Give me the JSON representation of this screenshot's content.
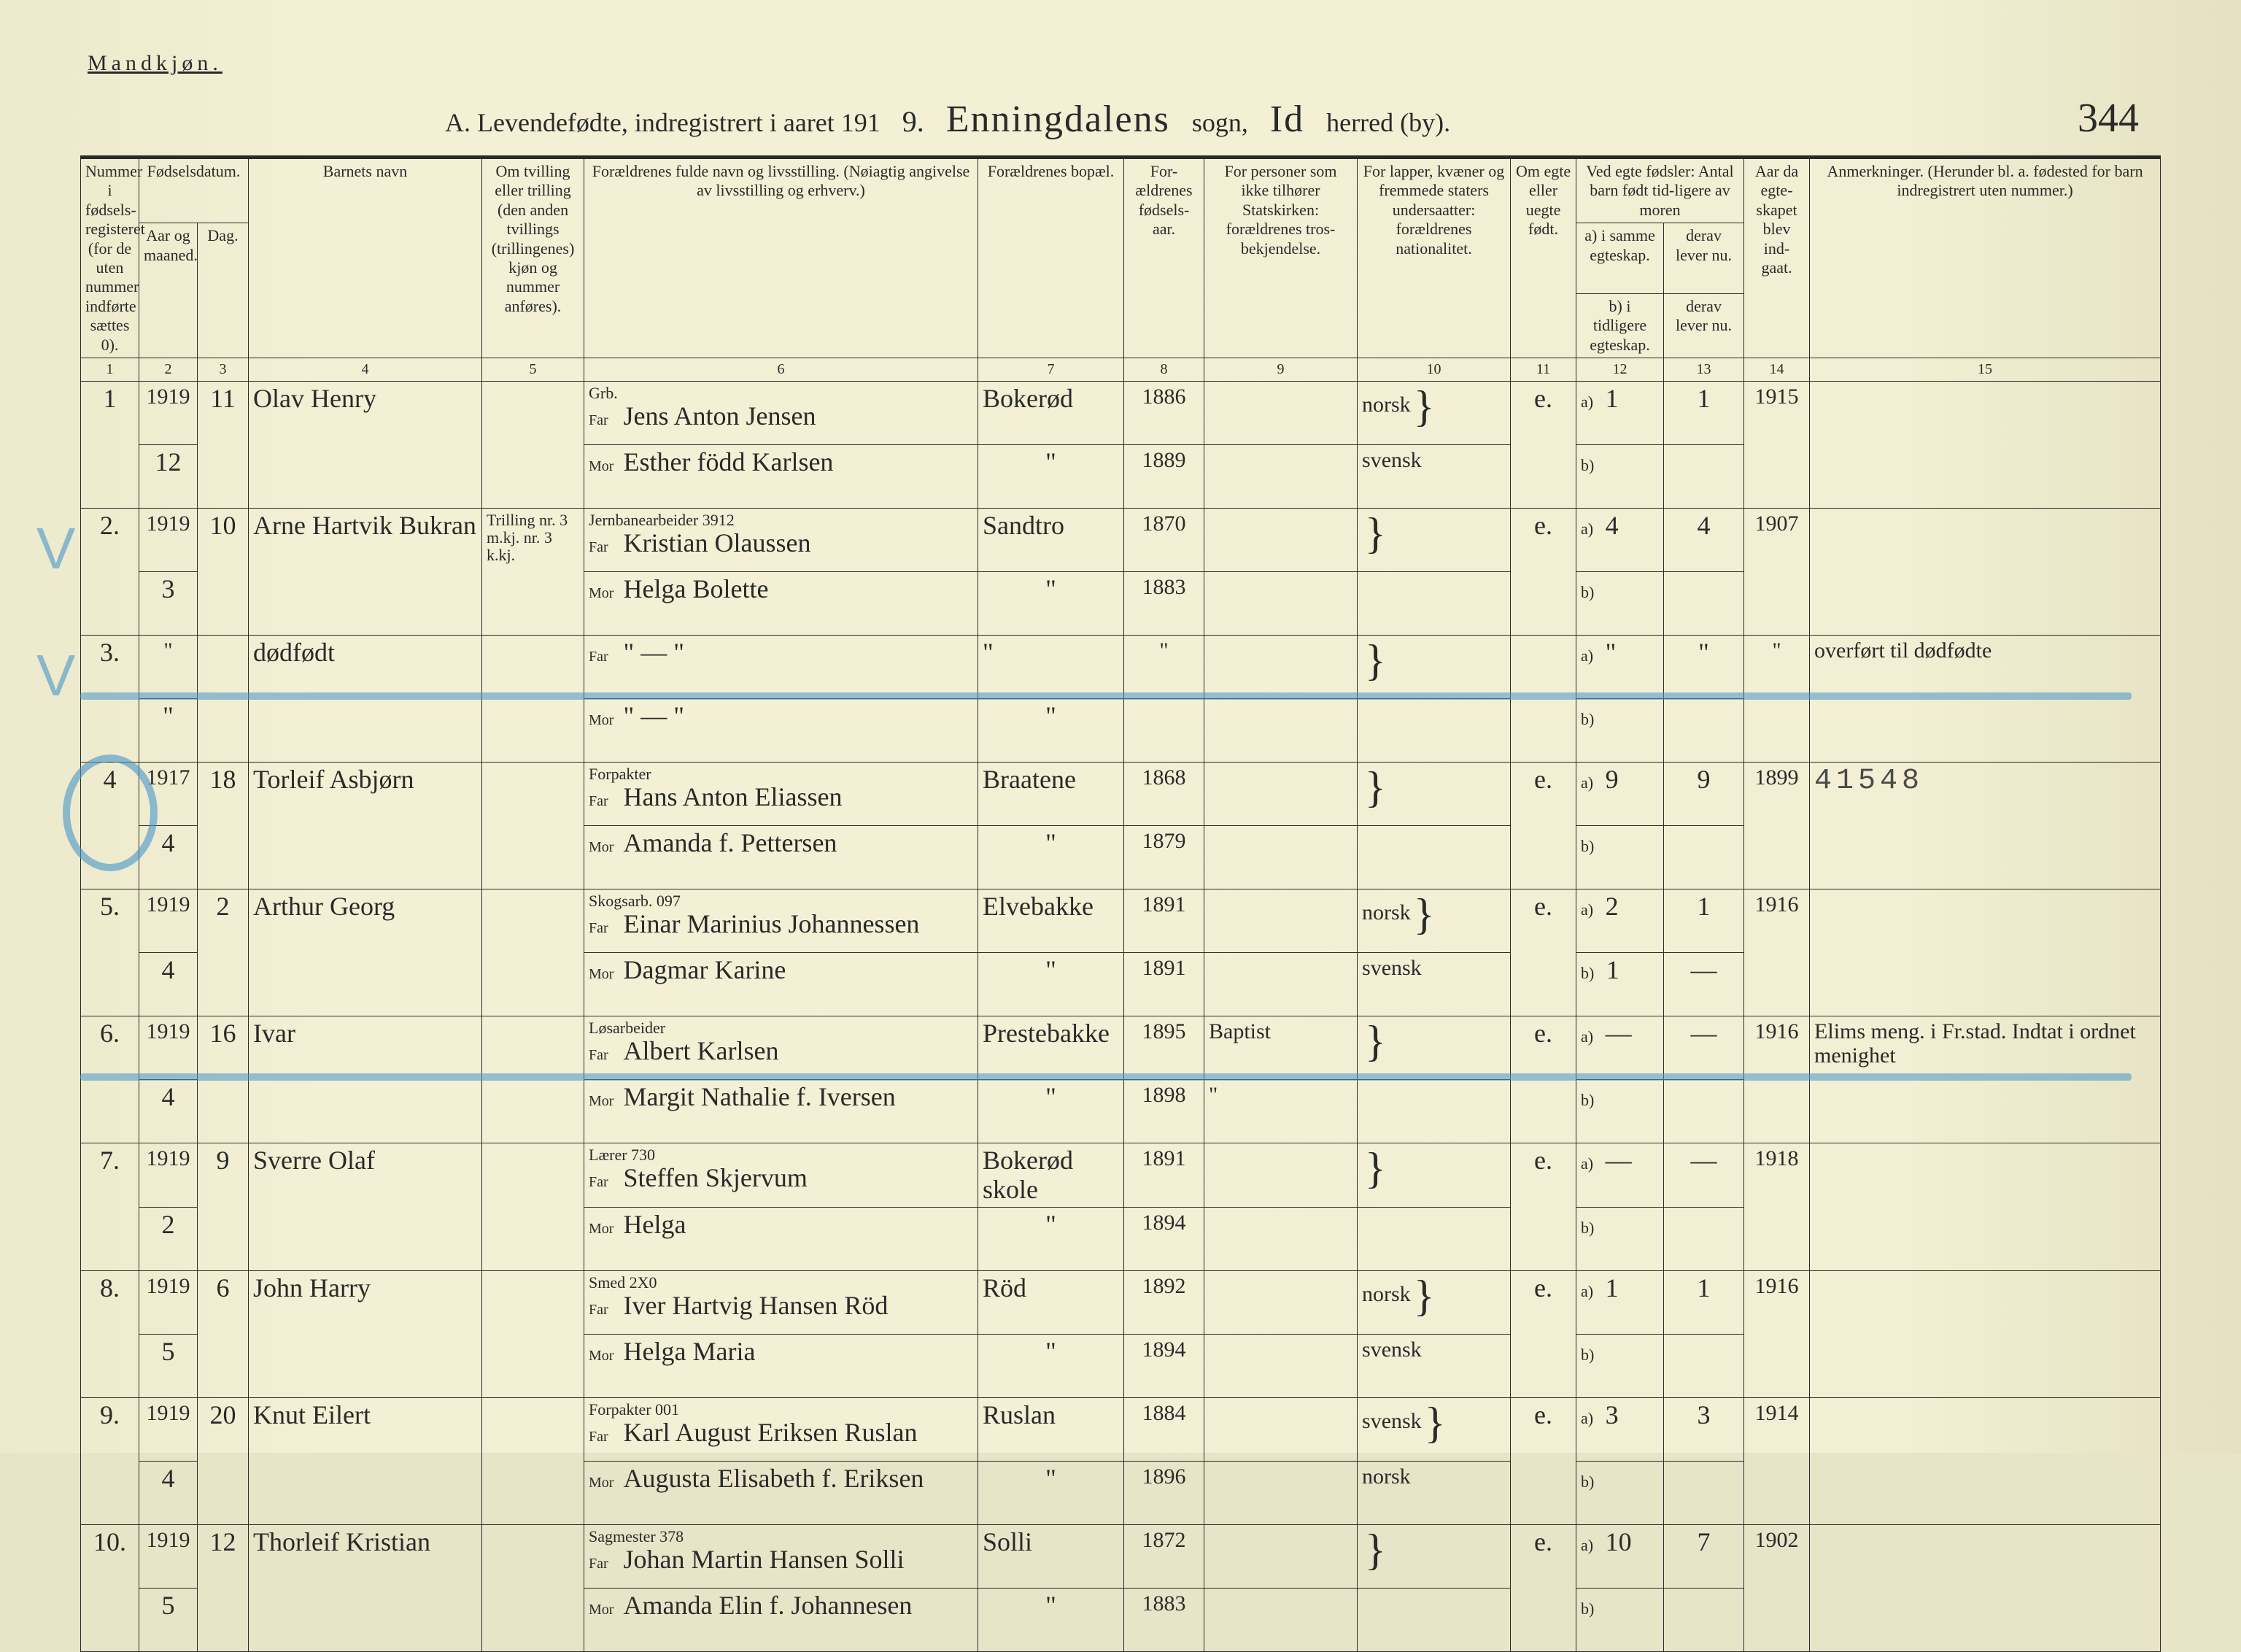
{
  "page": {
    "gender_heading": "Mandkjøn.",
    "title_prefix": "A. Levendefødte, indregistrert i aaret 191",
    "year_suffix": "9.",
    "sogn_script": "Enningdalens",
    "sogn_label": "sogn,",
    "herred_script": "Id",
    "herred_label": "herred (by).",
    "page_number": "344",
    "stamp": "41548"
  },
  "headers": {
    "c1": "Nummer i fødsels-registeret (for de uten nummer indførte sættes 0).",
    "c2": "Fødselsdatum.",
    "c2a": "Aar og maaned.",
    "c2b": "Dag.",
    "c4": "Barnets navn",
    "c5": "Om tvilling eller trilling (den anden tvillings (trillingenes) kjøn og nummer anføres).",
    "c6": "Forældrenes fulde navn og livsstilling. (Nøiagtig angivelse av livsstilling og erhverv.)",
    "c7": "Forældrenes bopæl.",
    "c8": "For-ældrenes fødsels-aar.",
    "c9": "For personer som ikke tilhører Statskirken: forældrenes tros-bekjendelse.",
    "c10": "For lapper, kvæner og fremmede staters undersaatter: forældrenes nationalitet.",
    "c11": "Om egte eller uegte født.",
    "c12_top": "Ved egte fødsler: Antal barn født tid-ligere av moren",
    "c12a": "a) i samme egteskap.",
    "c12b": "b) i tidligere egteskap.",
    "c13a": "derav lever nu.",
    "c13b": "derav lever nu.",
    "c14": "Aar da egte-skapet blev ind-gaat.",
    "c15": "Anmerkninger. (Herunder bl. a. fødested for barn indregistrert uten nummer.)",
    "far": "Far",
    "mor": "Mor"
  },
  "colnums": [
    "1",
    "2",
    "3",
    "4",
    "5",
    "6",
    "7",
    "8",
    "9",
    "10",
    "11",
    "12",
    "13",
    "14",
    "15"
  ],
  "entries": [
    {
      "num": "1",
      "yr": "1919",
      "mo": "12",
      "day": "11",
      "child": "Olav Henry",
      "twin": "",
      "occ": "Grb.",
      "far": "Jens Anton Jensen",
      "mor": "Esther född Karlsen",
      "bopael": "Bokerød",
      "faryr": "1886",
      "moryr": "1889",
      "rel": "",
      "nat_f": "norsk",
      "nat_m": "svensk",
      "egte": "e.",
      "a": "1",
      "c": "1",
      "b": "",
      "d": "",
      "marr": "1915",
      "anm": ""
    },
    {
      "num": "2.",
      "yr": "1919",
      "mo": "3",
      "day": "10",
      "child": "Arne Hartvik Bukran",
      "twin": "Trilling nr. 3 m.kj. nr. 3 k.kj.",
      "occ": "Jernbanearbeider 3912",
      "far": "Kristian Olaussen",
      "mor": "Helga Bolette",
      "bopael": "Sandtro",
      "faryr": "1870",
      "moryr": "1883",
      "rel": "",
      "nat_f": "",
      "nat_m": "",
      "egte": "e.",
      "a": "4",
      "c": "4",
      "b": "",
      "d": "",
      "marr": "1907",
      "anm": ""
    },
    {
      "num": "3.",
      "yr": "\"",
      "mo": "\"",
      "day": "",
      "child": "dødfødt",
      "twin": "",
      "occ": "",
      "far": "\"  —  \"",
      "mor": "\"  —  \"",
      "bopael": "\"",
      "faryr": "\"",
      "moryr": "",
      "rel": "",
      "nat_f": "",
      "nat_m": "",
      "egte": "",
      "a": "\"",
      "c": "\"",
      "b": "",
      "d": "",
      "marr": "\"",
      "anm": "overført til dødfødte"
    },
    {
      "num": "4",
      "yr": "1917",
      "mo": "4",
      "day": "18",
      "child": "Torleif Asbjørn",
      "twin": "",
      "occ": "Forpakter",
      "far": "Hans Anton Eliassen",
      "mor": "Amanda f. Pettersen",
      "bopael": "Braatene",
      "faryr": "1868",
      "moryr": "1879",
      "rel": "",
      "nat_f": "",
      "nat_m": "",
      "egte": "e.",
      "a": "9",
      "c": "9",
      "b": "",
      "d": "",
      "marr": "1899",
      "anm": ""
    },
    {
      "num": "5.",
      "yr": "1919",
      "mo": "4",
      "day": "2",
      "child": "Arthur Georg",
      "twin": "",
      "occ": "Skogsarb. 097",
      "far": "Einar Marinius Johannessen",
      "mor": "Dagmar Karine",
      "bopael": "Elvebakke",
      "faryr": "1891",
      "moryr": "1891",
      "rel": "",
      "nat_f": "norsk",
      "nat_m": "svensk",
      "egte": "e.",
      "a": "2",
      "c": "1",
      "b": "1",
      "d": "—",
      "marr": "1916",
      "anm": ""
    },
    {
      "num": "6.",
      "yr": "1919",
      "mo": "4",
      "day": "16",
      "child": "Ivar",
      "twin": "",
      "occ": "Løsarbeider",
      "far": "Albert Karlsen",
      "mor": "Margit Nathalie f. Iversen",
      "bopael": "Prestebakke",
      "faryr": "1895",
      "moryr": "1898",
      "rel": "Baptist",
      "nat_f": "",
      "nat_m": "",
      "egte": "e.",
      "a": "—",
      "c": "—",
      "b": "",
      "d": "",
      "marr": "1916",
      "anm": "Elims meng. i Fr.stad. Indtat i ordnet menighet"
    },
    {
      "num": "7.",
      "yr": "1919",
      "mo": "2",
      "day": "9",
      "child": "Sverre Olaf",
      "twin": "",
      "occ": "Lærer 730",
      "far": "Steffen Skjervum",
      "mor": "Helga",
      "bopael": "Bokerød skole",
      "faryr": "1891",
      "moryr": "1894",
      "rel": "",
      "nat_f": "",
      "nat_m": "",
      "egte": "e.",
      "a": "—",
      "c": "—",
      "b": "",
      "d": "",
      "marr": "1918",
      "anm": ""
    },
    {
      "num": "8.",
      "yr": "1919",
      "mo": "5",
      "day": "6",
      "child": "John Harry",
      "twin": "",
      "occ": "Smed 2X0",
      "far": "Iver Hartvig Hansen Röd",
      "mor": "Helga Maria",
      "bopael": "Röd",
      "faryr": "1892",
      "moryr": "1894",
      "rel": "",
      "nat_f": "norsk",
      "nat_m": "svensk",
      "egte": "e.",
      "a": "1",
      "c": "1",
      "b": "",
      "d": "",
      "marr": "1916",
      "anm": ""
    },
    {
      "num": "9.",
      "yr": "1919",
      "mo": "4",
      "day": "20",
      "child": "Knut Eilert",
      "twin": "",
      "occ": "Forpakter 001",
      "far": "Karl August Eriksen Ruslan",
      "mor": "Augusta Elisabeth f. Eriksen",
      "bopael": "Ruslan",
      "faryr": "1884",
      "moryr": "1896",
      "rel": "",
      "nat_f": "svensk",
      "nat_m": "norsk",
      "egte": "e.",
      "a": "3",
      "c": "3",
      "b": "",
      "d": "",
      "marr": "1914",
      "anm": ""
    },
    {
      "num": "10.",
      "yr": "1919",
      "mo": "5",
      "day": "12",
      "child": "Thorleif Kristian",
      "twin": "",
      "occ": "Sagmester 378",
      "far": "Johan Martin Hansen Solli",
      "mor": "Amanda Elin f. Johannesen",
      "bopael": "Solli",
      "faryr": "1872",
      "moryr": "1883",
      "rel": "",
      "nat_f": "",
      "nat_m": "",
      "egte": "e.",
      "a": "10",
      "c": "7",
      "b": "",
      "d": "",
      "marr": "1902",
      "anm": ""
    }
  ],
  "overlays": {
    "strike_rows": [
      3,
      6
    ],
    "circle_row": 4,
    "check_rows": [
      2,
      3
    ]
  },
  "colors": {
    "paper": "#f3efd4",
    "ink": "#2a2a2a",
    "blue_pencil": "rgba(70,150,200,0.6)"
  }
}
